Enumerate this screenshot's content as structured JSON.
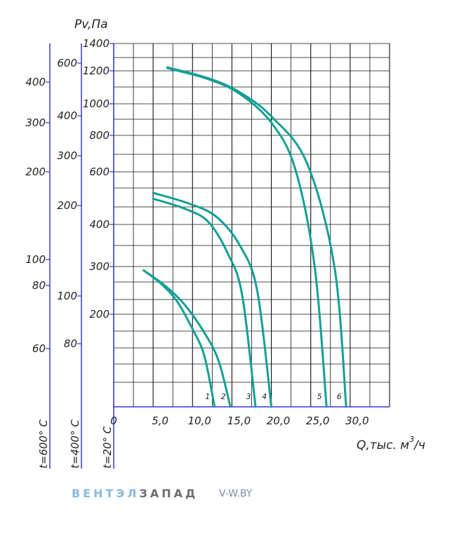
{
  "chart_data": {
    "type": "line",
    "y_title": "Pv,Па",
    "x_title": "Q,тыс. м",
    "x_title_sup": "3",
    "x_title_suffix": "/ч",
    "xlim": [
      0,
      35
    ],
    "x_ticks": [
      "0",
      "5,0",
      "10,0",
      "15,0",
      "20,0",
      "25,0",
      "30,0"
    ],
    "y_axes": [
      {
        "label": "t=20° C",
        "ticks": [
          "1400",
          "1200",
          "1000",
          "800",
          "600",
          "400",
          "300",
          "200"
        ]
      },
      {
        "label": "t=400° C",
        "ticks": [
          "600",
          "400",
          "300",
          "200",
          "100",
          "80"
        ]
      },
      {
        "label": "t=600° C",
        "ticks": [
          "400",
          "300",
          "200",
          "100",
          "80",
          "60"
        ]
      }
    ],
    "series": [
      {
        "name": "1",
        "x": [
          3.8,
          6.0,
          8.0,
          10.0,
          11.5,
          12.8
        ],
        "y": [
          292,
          264,
          228,
          168,
          110,
          0
        ]
      },
      {
        "name": "2",
        "x": [
          3.8,
          6.5,
          9.0,
          11.5,
          13.3,
          14.8
        ],
        "y": [
          292,
          260,
          220,
          160,
          100,
          0
        ]
      },
      {
        "name": "3",
        "x": [
          5.0,
          9.0,
          12.0,
          14.5,
          16.3,
          18.0
        ],
        "y": [
          498,
          460,
          410,
          330,
          240,
          0
        ]
      },
      {
        "name": "4",
        "x": [
          5.0,
          9.5,
          13.0,
          16.0,
          18.2,
          20.0
        ],
        "y": [
          520,
          480,
          430,
          350,
          250,
          0
        ]
      },
      {
        "name": "5",
        "x": [
          6.8,
          12.0,
          16.0,
          20.0,
          23.0,
          25.5,
          27.0
        ],
        "y": [
          1220,
          1150,
          1060,
          880,
          620,
          300,
          0
        ]
      },
      {
        "name": "6",
        "x": [
          6.8,
          12.0,
          16.0,
          20.0,
          24.5,
          28.0,
          29.5
        ],
        "y": [
          1225,
          1155,
          1070,
          920,
          650,
          300,
          0
        ]
      }
    ],
    "grid": true,
    "line_color": "#13a095",
    "axis_color": "#3535dd"
  },
  "logo": {
    "part1": "ВЕНТЭЛ",
    "part2": "ЗАПАД"
  },
  "site": "V-W.BY"
}
